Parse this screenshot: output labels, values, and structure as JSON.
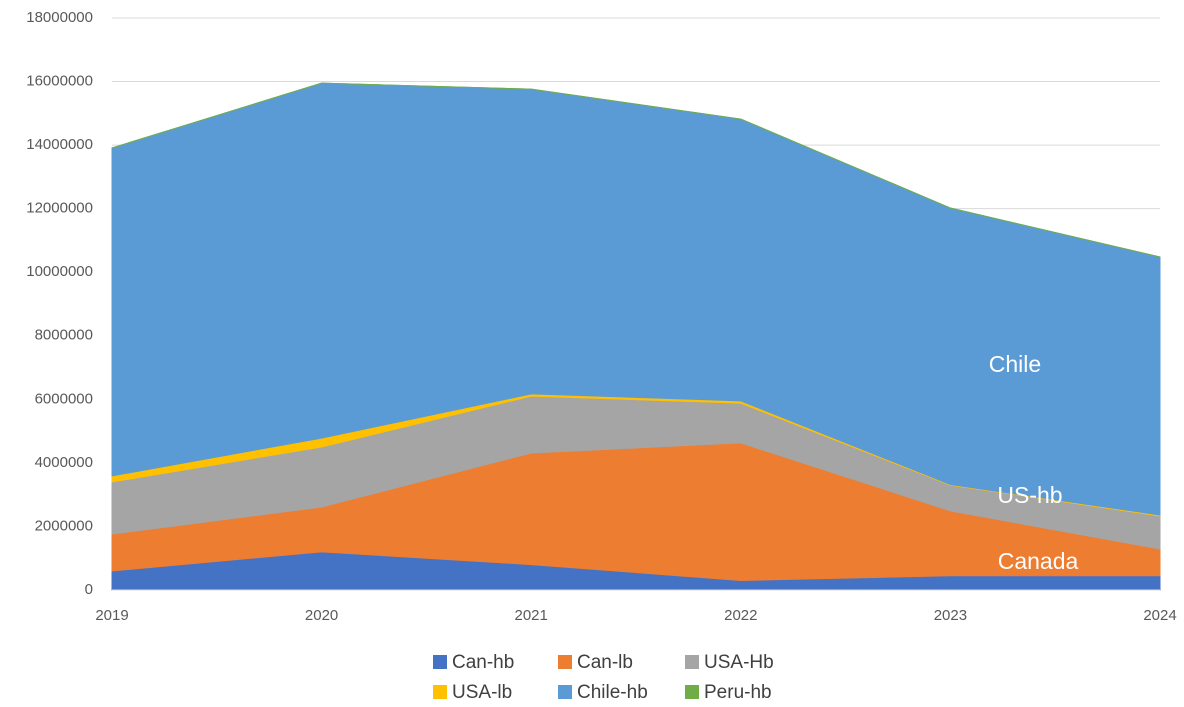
{
  "chart_data": {
    "type": "area",
    "stacked": true,
    "x": [
      2019,
      2020,
      2021,
      2022,
      2023,
      2024
    ],
    "xlim": [
      2019,
      2024
    ],
    "xticks": [
      2019,
      2020,
      2021,
      2022,
      2023,
      2024
    ],
    "ylim": [
      0,
      18000000
    ],
    "yticks": [
      0,
      2000000,
      4000000,
      6000000,
      8000000,
      10000000,
      12000000,
      14000000,
      16000000,
      18000000
    ],
    "grid": true,
    "legend": "bottom",
    "series": [
      {
        "name": "Can-hb",
        "color": "#4472c4",
        "values": [
          600000,
          1200000,
          800000,
          300000,
          450000,
          450000
        ]
      },
      {
        "name": "Can-lb",
        "color": "#ed7d31",
        "values": [
          1160000,
          1410000,
          3510000,
          4330000,
          2040000,
          840000
        ]
      },
      {
        "name": "USA-Hb",
        "color": "#a5a5a5",
        "values": [
          1640000,
          1890000,
          1790000,
          1250000,
          810000,
          1040000
        ]
      },
      {
        "name": "USA-lb",
        "color": "#ffc000",
        "values": [
          190000,
          280000,
          70000,
          70000,
          20000,
          30000
        ]
      },
      {
        "name": "Chile-hb",
        "color": "#5b9bd5",
        "values": [
          10320000,
          11170000,
          9590000,
          8870000,
          8700000,
          8120000
        ]
      },
      {
        "name": "Peru-hb",
        "color": "#70ad47",
        "values": [
          0,
          0,
          0,
          0,
          0,
          0
        ]
      }
    ],
    "annotations": [
      "Chile",
      "US-hb",
      "Canada"
    ]
  }
}
